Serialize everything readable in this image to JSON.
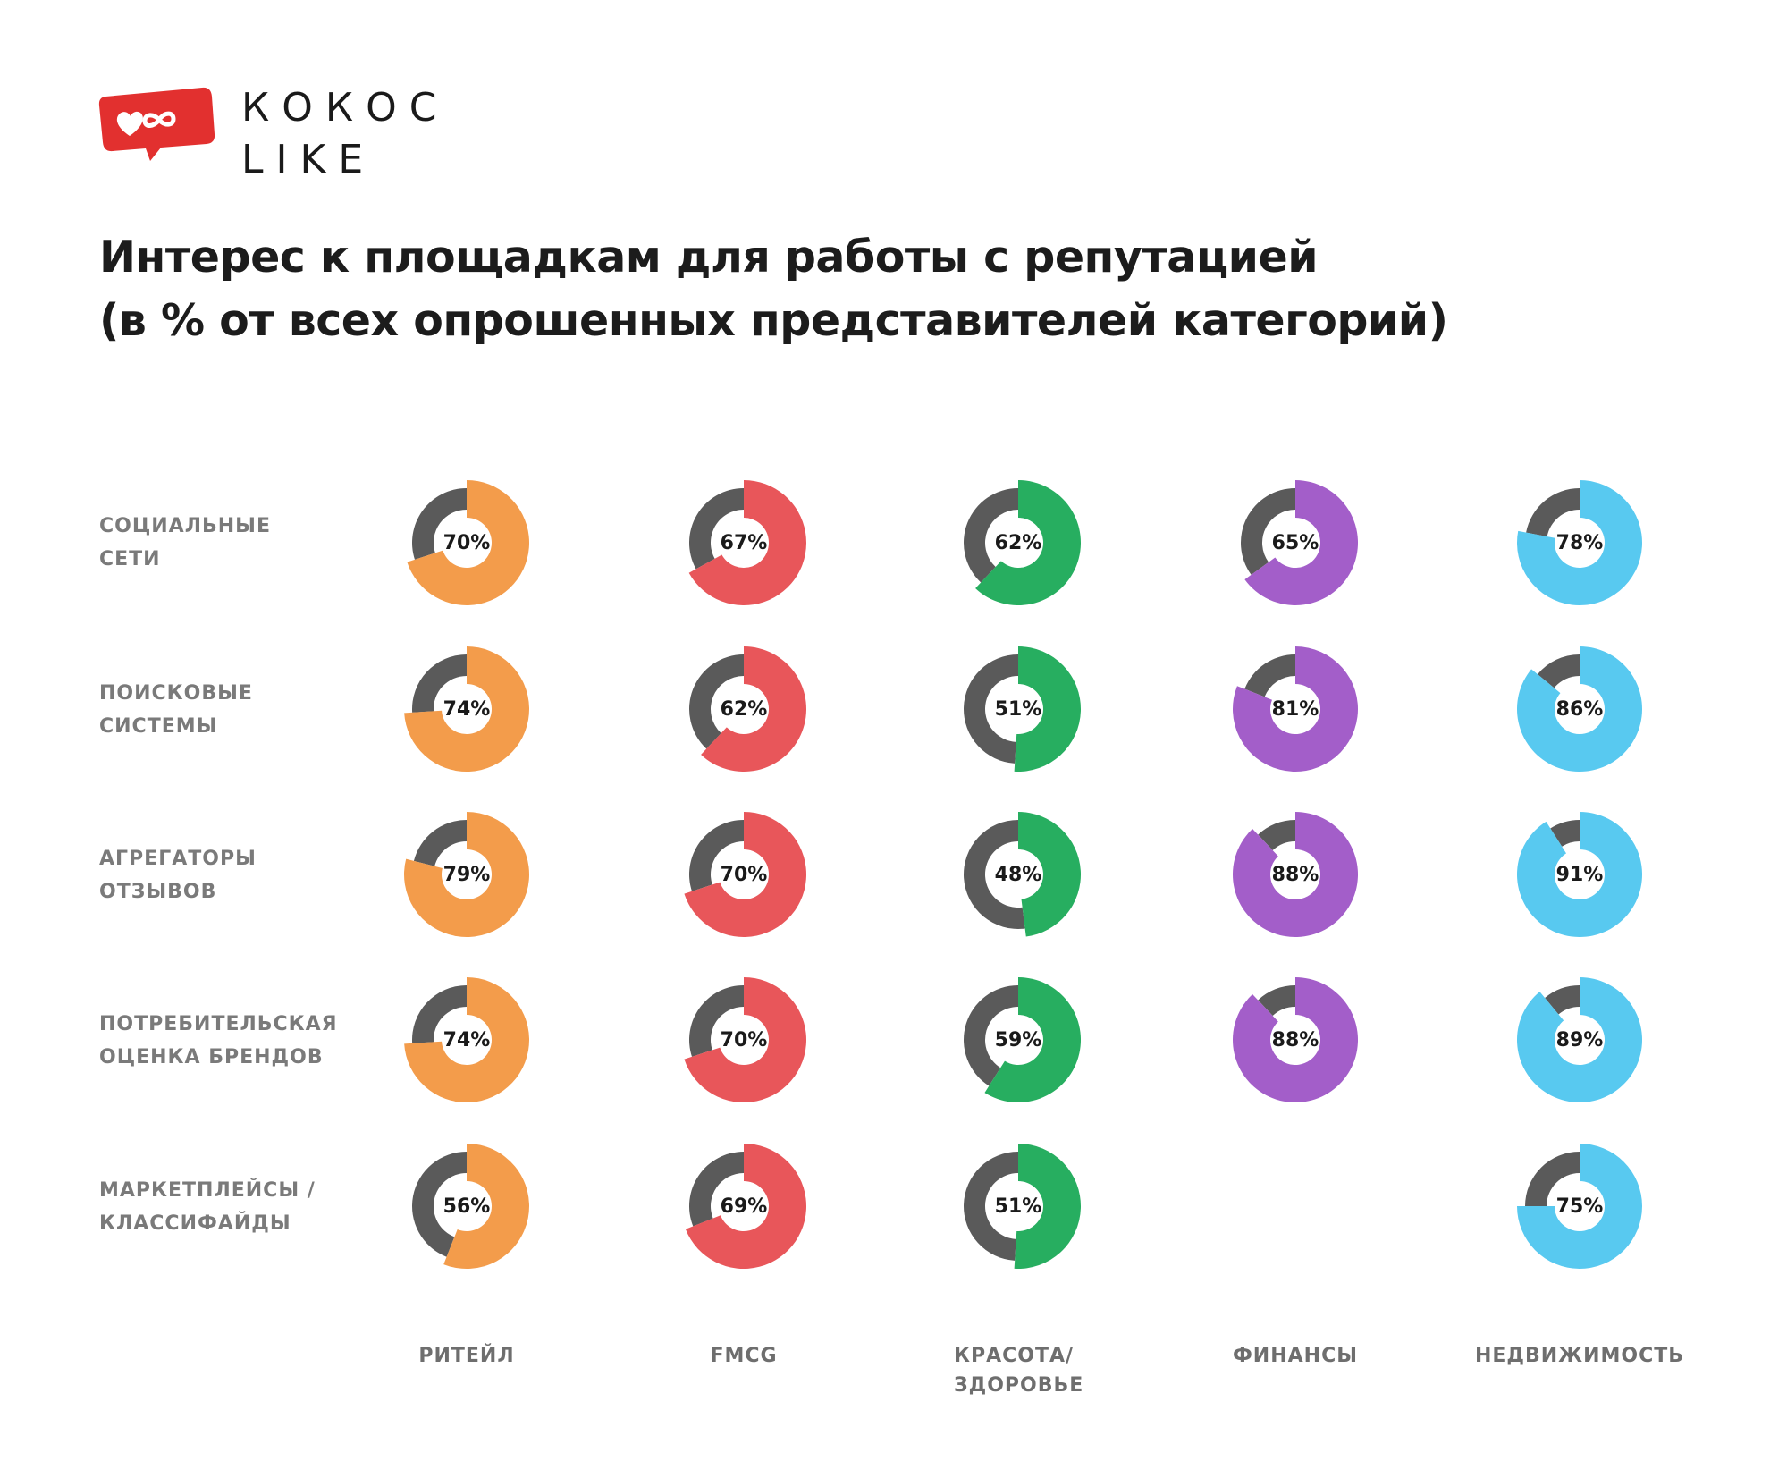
{
  "brand": {
    "line1": "КОКОС",
    "line2": "LIKE",
    "logo_color": "#e2302f"
  },
  "title": {
    "line1": "Интерес к площадкам для работы с репутацией",
    "line2": "(в % от всех опрошенных представителей категорий)"
  },
  "chart_data": {
    "type": "donut-grid",
    "unit": "%",
    "rows": [
      [
        "СОЦИАЛЬНЫЕ",
        "СЕТИ"
      ],
      [
        "ПОИСКОВЫЕ",
        "СИСТЕМЫ"
      ],
      [
        "АГРЕГАТОРЫ",
        "ОТЗЫВОВ"
      ],
      [
        "ПОТРЕБИТЕЛЬСКАЯ",
        "ОЦЕНКА БРЕНДОВ"
      ],
      [
        "МАРКЕТПЛЕЙСЫ /",
        "КЛАССИФАЙДЫ"
      ]
    ],
    "columns": [
      [
        "РИТЕЙЛ"
      ],
      [
        "FMCG"
      ],
      [
        "КРАСОТА/",
        "ЗДОРОВЬЕ"
      ],
      [
        "ФИНАНСЫ"
      ],
      [
        "НЕДВИЖИМОСТЬ"
      ]
    ],
    "series": [
      {
        "column": "РИТЕЙЛ",
        "color": "#f39c4b",
        "values": [
          70,
          74,
          79,
          74,
          56
        ]
      },
      {
        "column": "FMCG",
        "color": "#e8565a",
        "values": [
          67,
          62,
          70,
          70,
          69
        ]
      },
      {
        "column": "КРАСОТА/ЗДОРОВЬЕ",
        "color": "#27ae60",
        "values": [
          62,
          51,
          48,
          59,
          51
        ]
      },
      {
        "column": "ФИНАНСЫ",
        "color": "#a35ec9",
        "values": [
          65,
          81,
          88,
          88,
          null
        ]
      },
      {
        "column": "НЕДВИЖИМОСТЬ",
        "color": "#58c9f0",
        "values": [
          78,
          86,
          91,
          89,
          75
        ]
      }
    ],
    "remainder_color": "#5a5a5a"
  }
}
